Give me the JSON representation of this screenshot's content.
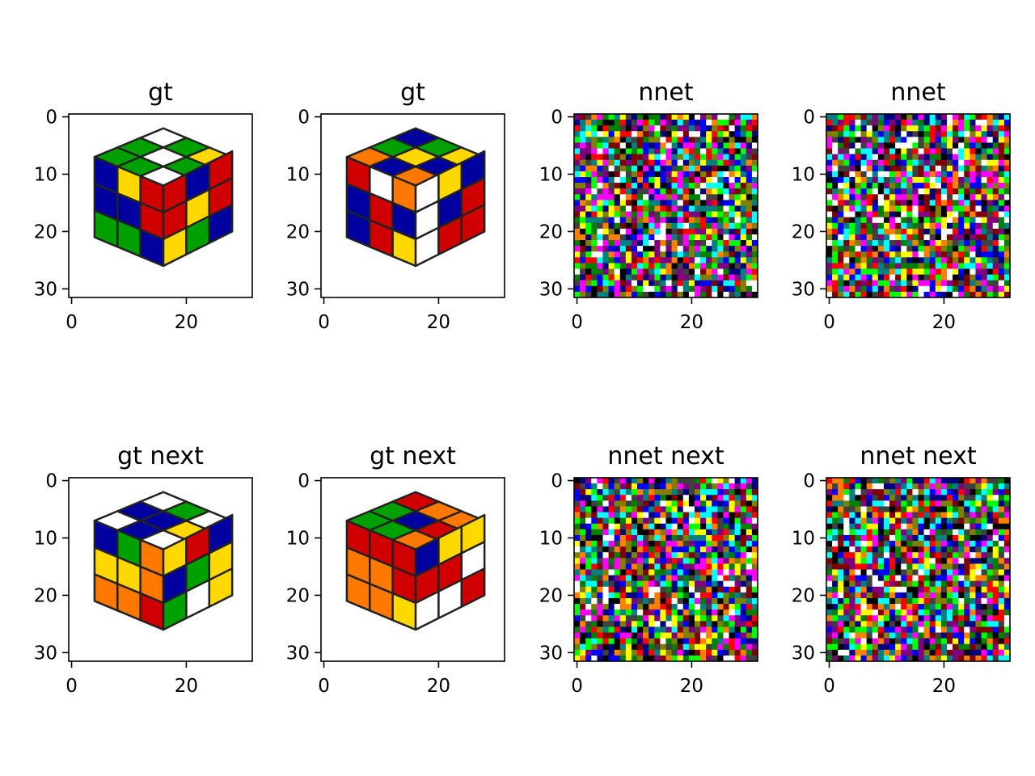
{
  "chart_data": [
    {
      "type": "heatmap",
      "title": "gt",
      "content": "rubiks-cube",
      "palette": "cube-a",
      "xticks": [
        0,
        20
      ],
      "yticks": [
        0,
        10,
        20,
        30
      ],
      "xlim": [
        -0.5,
        31.5
      ],
      "ylim": [
        31.5,
        -0.5
      ]
    },
    {
      "type": "heatmap",
      "title": "gt",
      "content": "rubiks-cube",
      "palette": "cube-b",
      "xticks": [
        0,
        20
      ],
      "yticks": [
        0,
        10,
        20,
        30
      ],
      "xlim": [
        -0.5,
        31.5
      ],
      "ylim": [
        31.5,
        -0.5
      ]
    },
    {
      "type": "heatmap",
      "title": "nnet",
      "content": "noise",
      "xticks": [
        0,
        20
      ],
      "yticks": [
        0,
        10,
        20,
        30
      ],
      "xlim": [
        -0.5,
        31.5
      ],
      "ylim": [
        31.5,
        -0.5
      ]
    },
    {
      "type": "heatmap",
      "title": "nnet",
      "content": "noise",
      "xticks": [
        0,
        20
      ],
      "yticks": [
        0,
        10,
        20,
        30
      ],
      "xlim": [
        -0.5,
        31.5
      ],
      "ylim": [
        31.5,
        -0.5
      ]
    },
    {
      "type": "heatmap",
      "title": "gt next",
      "content": "rubiks-cube",
      "palette": "cube-c",
      "xticks": [
        0,
        20
      ],
      "yticks": [
        0,
        10,
        20,
        30
      ],
      "xlim": [
        -0.5,
        31.5
      ],
      "ylim": [
        31.5,
        -0.5
      ]
    },
    {
      "type": "heatmap",
      "title": "gt next",
      "content": "rubiks-cube",
      "palette": "cube-d",
      "xticks": [
        0,
        20
      ],
      "yticks": [
        0,
        10,
        20,
        30
      ],
      "xlim": [
        -0.5,
        31.5
      ],
      "ylim": [
        31.5,
        -0.5
      ]
    },
    {
      "type": "heatmap",
      "title": "nnet next",
      "content": "noise",
      "xticks": [
        0,
        20
      ],
      "yticks": [
        0,
        10,
        20,
        30
      ],
      "xlim": [
        -0.5,
        31.5
      ],
      "ylim": [
        31.5,
        -0.5
      ]
    },
    {
      "type": "heatmap",
      "title": "nnet next",
      "content": "noise",
      "xticks": [
        0,
        20
      ],
      "yticks": [
        0,
        10,
        20,
        30
      ],
      "xlim": [
        -0.5,
        31.5
      ],
      "ylim": [
        31.5,
        -0.5
      ]
    }
  ],
  "colors": {
    "cube_white": "#ffffff",
    "cube_yellow": "#ffd800",
    "cube_green": "#00a000",
    "cube_red": "#d00000",
    "cube_blue": "#0000a0",
    "cube_orange": "#ff7800",
    "sticker_edge": "#222222",
    "noise": [
      "#000000",
      "#ff0000",
      "#00ff00",
      "#0000ff",
      "#ffff00",
      "#ff00ff",
      "#00ffff",
      "#ffffff",
      "#800000",
      "#008000",
      "#000080",
      "#808000",
      "#800080",
      "#008080",
      "#404040",
      "#ff8000"
    ]
  }
}
